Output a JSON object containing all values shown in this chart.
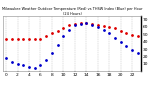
{
  "title": "Milwaukee Weather Outdoor Temperature (Red) vs THSW Index (Blue) per Hour (24 Hours)",
  "hours": [
    0,
    1,
    2,
    3,
    4,
    5,
    6,
    7,
    8,
    9,
    10,
    11,
    12,
    13,
    14,
    15,
    16,
    17,
    18,
    19,
    20,
    21,
    22,
    23
  ],
  "temp_red": [
    43,
    43,
    43,
    43,
    43,
    43,
    44,
    47,
    51,
    55,
    59,
    62,
    64,
    65,
    65,
    64,
    62,
    61,
    60,
    58,
    55,
    52,
    49,
    47
  ],
  "thsw_blue": [
    18,
    13,
    10,
    8,
    6,
    5,
    8,
    15,
    25,
    36,
    48,
    56,
    62,
    64,
    65,
    63,
    60,
    56,
    51,
    45,
    39,
    34,
    29,
    25
  ],
  "ylim_min": 0,
  "ylim_max": 75,
  "yticks": [
    10,
    20,
    30,
    40,
    50,
    60,
    70
  ],
  "ytick_labels": [
    "10",
    "20",
    "30",
    "40",
    "50",
    "60",
    "70"
  ],
  "bg_color": "#ffffff",
  "red_color": "#dd0000",
  "blue_color": "#0000cc",
  "grid_color": "#bbbbbb",
  "marker_size": 2.0,
  "tick_fontsize": 3.2,
  "title_fontsize": 2.5
}
